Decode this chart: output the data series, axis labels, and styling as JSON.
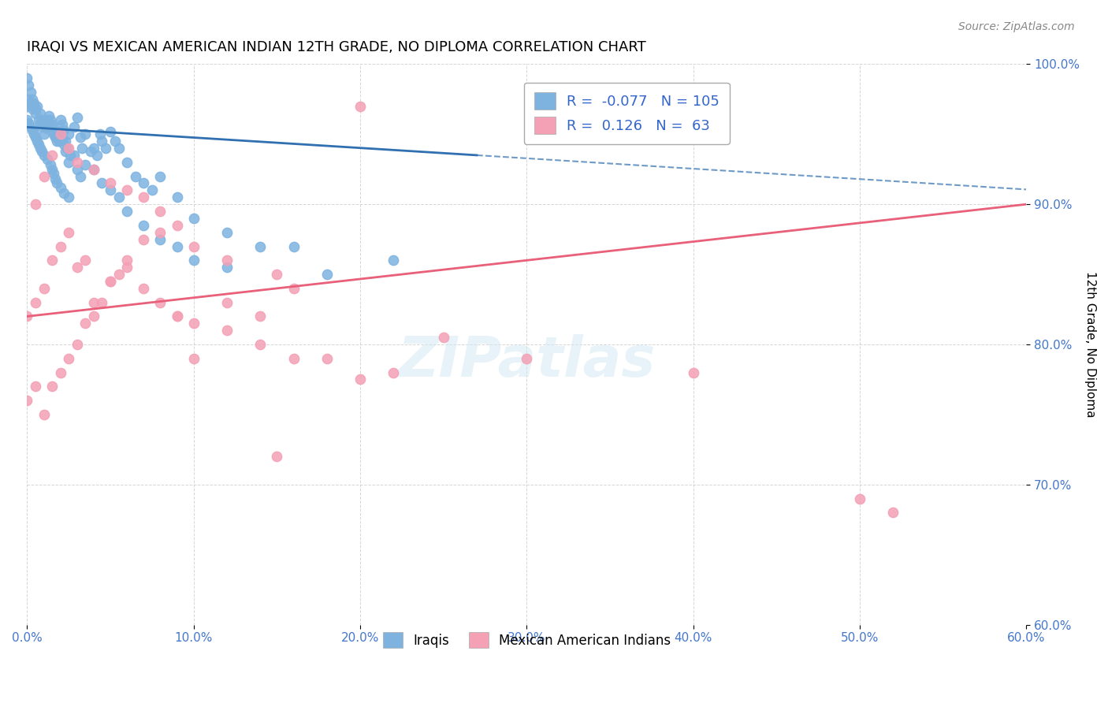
{
  "title": "IRAQI VS MEXICAN AMERICAN INDIAN 12TH GRADE, NO DIPLOMA CORRELATION CHART",
  "source": "Source: ZipAtlas.com",
  "xlabel_bottom": "",
  "ylabel": "12th Grade, No Diploma",
  "watermark": "ZIPatlas",
  "x_min": 0.0,
  "x_max": 0.6,
  "y_min": 0.6,
  "y_max": 1.0,
  "x_ticks": [
    0.0,
    0.1,
    0.2,
    0.3,
    0.4,
    0.5,
    0.6
  ],
  "x_tick_labels": [
    "0.0%",
    "10.0%",
    "20.0%",
    "30.0%",
    "40.0%",
    "50.0%",
    "60.0%"
  ],
  "y_ticks": [
    0.6,
    0.7,
    0.8,
    0.9,
    1.0
  ],
  "y_tick_labels": [
    "60.0%",
    "70.0%",
    "80.0%",
    "90.0%",
    "100.0%"
  ],
  "iraqis_R": -0.077,
  "iraqis_N": 105,
  "mexican_R": 0.126,
  "mexican_N": 63,
  "iraqis_color": "#7EB3E0",
  "mexican_color": "#F4A0B5",
  "iraqis_line_color": "#3070B0",
  "mexican_line_color": "#E8607A",
  "legend_label_iraqis": "Iraqis",
  "legend_label_mexican": "Mexican American Indians",
  "iraqis_scatter_x": [
    0.0,
    0.001,
    0.002,
    0.003,
    0.004,
    0.005,
    0.007,
    0.008,
    0.009,
    0.01,
    0.012,
    0.013,
    0.015,
    0.016,
    0.017,
    0.018,
    0.019,
    0.02,
    0.021,
    0.022,
    0.023,
    0.024,
    0.025,
    0.026,
    0.028,
    0.03,
    0.032,
    0.033,
    0.035,
    0.038,
    0.04,
    0.042,
    0.044,
    0.045,
    0.047,
    0.05,
    0.053,
    0.055,
    0.06,
    0.065,
    0.07,
    0.075,
    0.08,
    0.09,
    0.1,
    0.12,
    0.14,
    0.16,
    0.18,
    0.22,
    0.0,
    0.001,
    0.002,
    0.003,
    0.004,
    0.005,
    0.006,
    0.008,
    0.009,
    0.01,
    0.011,
    0.012,
    0.014,
    0.015,
    0.016,
    0.018,
    0.019,
    0.02,
    0.021,
    0.022,
    0.023,
    0.025,
    0.028,
    0.03,
    0.032,
    0.035,
    0.04,
    0.045,
    0.05,
    0.055,
    0.06,
    0.07,
    0.08,
    0.09,
    0.1,
    0.12,
    0.0,
    0.001,
    0.002,
    0.003,
    0.004,
    0.005,
    0.006,
    0.007,
    0.008,
    0.009,
    0.01,
    0.012,
    0.014,
    0.015,
    0.016,
    0.017,
    0.018,
    0.02,
    0.022,
    0.025
  ],
  "iraqis_scatter_y": [
    0.97,
    0.975,
    0.972,
    0.968,
    0.97,
    0.965,
    0.96,
    0.958,
    0.955,
    0.95,
    0.96,
    0.963,
    0.957,
    0.952,
    0.948,
    0.945,
    0.952,
    0.96,
    0.957,
    0.953,
    0.945,
    0.94,
    0.95,
    0.935,
    0.955,
    0.962,
    0.948,
    0.94,
    0.95,
    0.938,
    0.94,
    0.935,
    0.95,
    0.945,
    0.94,
    0.952,
    0.945,
    0.94,
    0.93,
    0.92,
    0.915,
    0.91,
    0.92,
    0.905,
    0.89,
    0.88,
    0.87,
    0.87,
    0.85,
    0.86,
    0.99,
    0.985,
    0.98,
    0.975,
    0.972,
    0.968,
    0.97,
    0.965,
    0.96,
    0.958,
    0.956,
    0.954,
    0.96,
    0.955,
    0.95,
    0.948,
    0.945,
    0.952,
    0.947,
    0.943,
    0.938,
    0.93,
    0.935,
    0.925,
    0.92,
    0.928,
    0.925,
    0.915,
    0.91,
    0.905,
    0.895,
    0.885,
    0.875,
    0.87,
    0.86,
    0.855,
    0.96,
    0.958,
    0.955,
    0.953,
    0.95,
    0.948,
    0.945,
    0.943,
    0.94,
    0.938,
    0.935,
    0.932,
    0.928,
    0.925,
    0.922,
    0.918,
    0.915,
    0.912,
    0.908,
    0.905
  ],
  "mexican_scatter_x": [
    0.0,
    0.005,
    0.01,
    0.015,
    0.02,
    0.025,
    0.03,
    0.035,
    0.04,
    0.05,
    0.06,
    0.07,
    0.08,
    0.09,
    0.1,
    0.12,
    0.14,
    0.16,
    0.0,
    0.005,
    0.01,
    0.015,
    0.02,
    0.025,
    0.03,
    0.035,
    0.04,
    0.045,
    0.05,
    0.055,
    0.06,
    0.07,
    0.08,
    0.09,
    0.1,
    0.12,
    0.14,
    0.16,
    0.18,
    0.2,
    0.22,
    0.25,
    0.3,
    0.4,
    0.5,
    0.005,
    0.01,
    0.015,
    0.02,
    0.025,
    0.03,
    0.04,
    0.05,
    0.06,
    0.07,
    0.08,
    0.09,
    0.1,
    0.12,
    0.15,
    0.2,
    0.52,
    0.15
  ],
  "mexican_scatter_y": [
    0.82,
    0.83,
    0.84,
    0.86,
    0.87,
    0.88,
    0.855,
    0.86,
    0.83,
    0.845,
    0.86,
    0.875,
    0.88,
    0.82,
    0.815,
    0.83,
    0.82,
    0.84,
    0.76,
    0.77,
    0.75,
    0.77,
    0.78,
    0.79,
    0.8,
    0.815,
    0.82,
    0.83,
    0.845,
    0.85,
    0.855,
    0.84,
    0.83,
    0.82,
    0.79,
    0.81,
    0.8,
    0.79,
    0.79,
    0.775,
    0.78,
    0.805,
    0.79,
    0.78,
    0.69,
    0.9,
    0.92,
    0.935,
    0.95,
    0.94,
    0.93,
    0.925,
    0.915,
    0.91,
    0.905,
    0.895,
    0.885,
    0.87,
    0.86,
    0.85,
    0.97,
    0.68,
    0.72
  ]
}
